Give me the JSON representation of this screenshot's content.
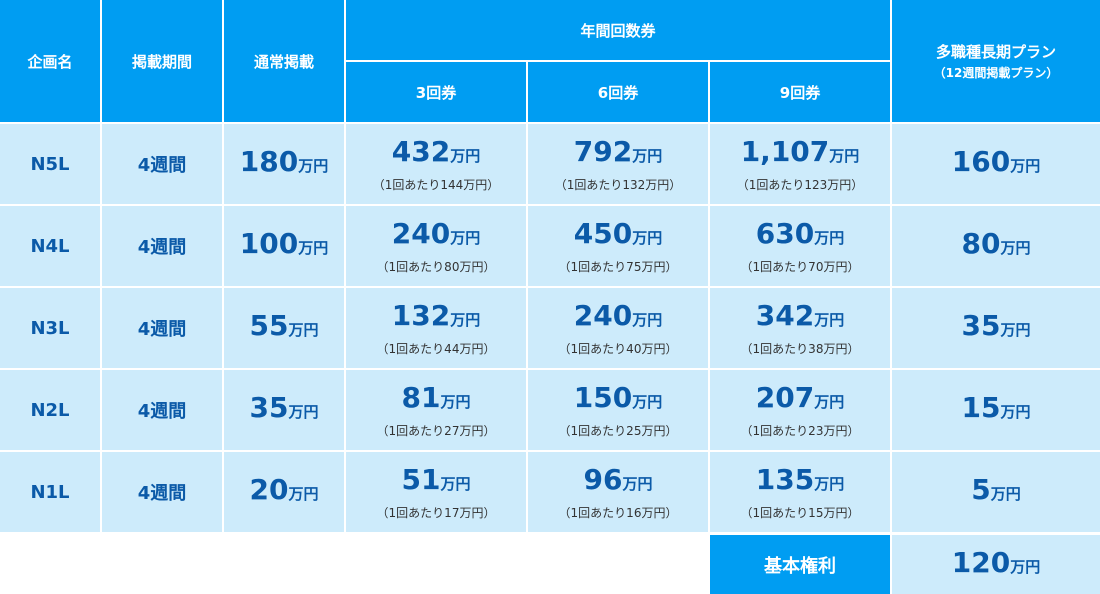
{
  "header": {
    "plan": "企画名",
    "period": "掲載期間",
    "normal": "通常掲載",
    "annual": "年間回数券",
    "t3": "3回券",
    "t6": "6回券",
    "t9": "9回券",
    "multi": "多職種長期プラン",
    "multi_sub": "（12週間掲載プラン）"
  },
  "unit": "万円",
  "rows": [
    {
      "name": "N5L",
      "period": "4週間",
      "normal": "180",
      "t3": "432",
      "t3_per": "（1回あたり144万円）",
      "t6": "792",
      "t6_per": "（1回あたり132万円）",
      "t9": "1,107",
      "t9_per": "（1回あたり123万円）",
      "multi": "160"
    },
    {
      "name": "N4L",
      "period": "4週間",
      "normal": "100",
      "t3": "240",
      "t3_per": "（1回あたり80万円）",
      "t6": "450",
      "t6_per": "（1回あたり75万円）",
      "t9": "630",
      "t9_per": "（1回あたり70万円）",
      "multi": "80"
    },
    {
      "name": "N3L",
      "period": "4週間",
      "normal": "55",
      "t3": "132",
      "t3_per": "（1回あたり44万円）",
      "t6": "240",
      "t6_per": "（1回あたり40万円）",
      "t9": "342",
      "t9_per": "（1回あたり38万円）",
      "multi": "35"
    },
    {
      "name": "N2L",
      "period": "4週間",
      "normal": "35",
      "t3": "81",
      "t3_per": "（1回あたり27万円）",
      "t6": "150",
      "t6_per": "（1回あたり25万円）",
      "t9": "207",
      "t9_per": "（1回あたり23万円）",
      "multi": "15"
    },
    {
      "name": "N1L",
      "period": "4週間",
      "normal": "20",
      "t3": "51",
      "t3_per": "（1回あたり17万円）",
      "t6": "96",
      "t6_per": "（1回あたり16万円）",
      "t9": "135",
      "t9_per": "（1回あたり15万円）",
      "multi": "5"
    }
  ],
  "footer": {
    "label": "基本権利",
    "value": "120"
  }
}
